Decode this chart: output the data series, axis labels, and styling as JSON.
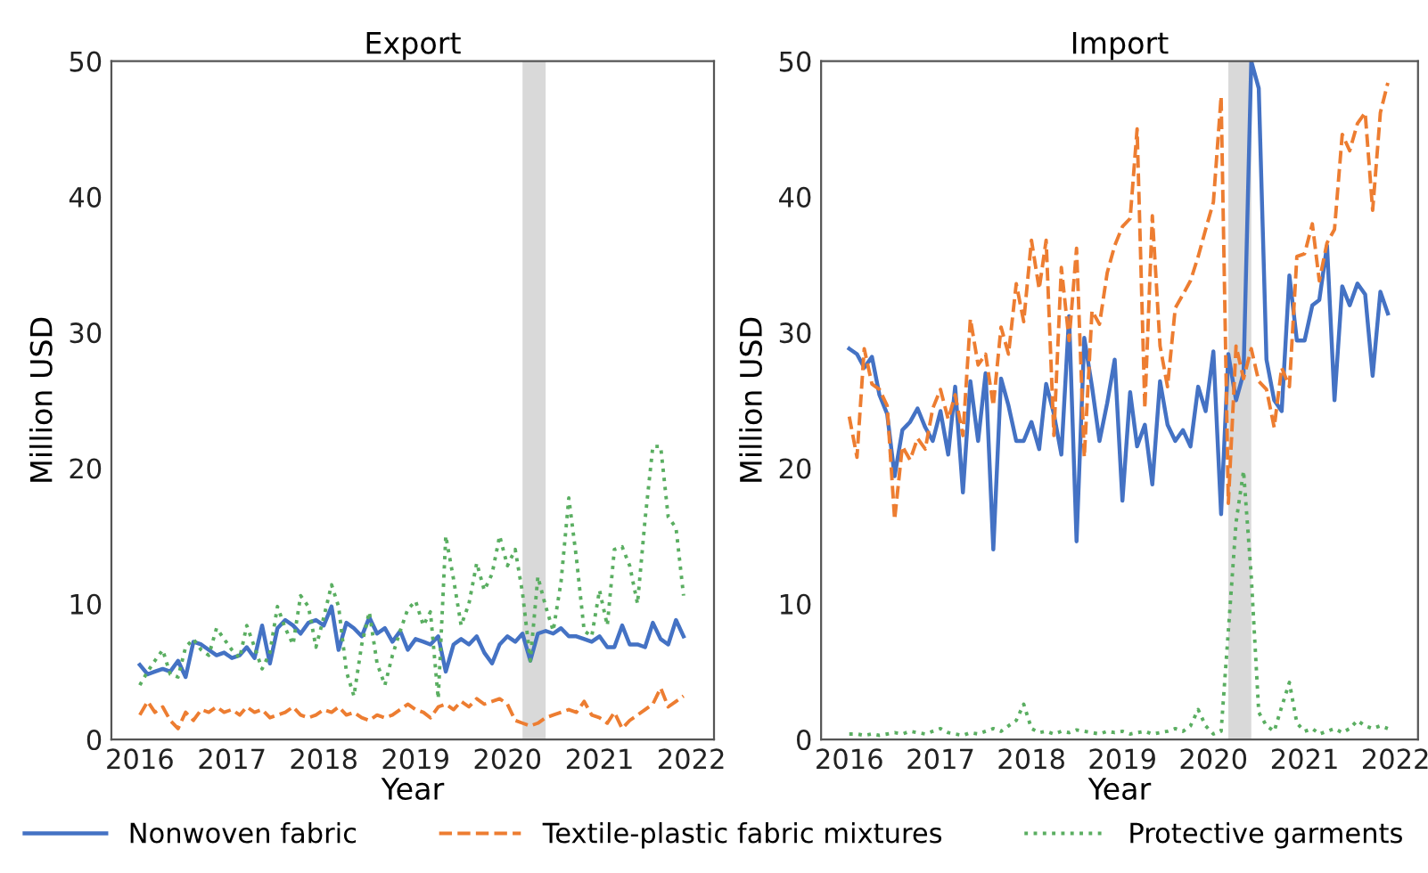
{
  "chart_data": [
    {
      "type": "line",
      "title": "Export",
      "xlabel": "Year",
      "ylabel": "Million USD",
      "x": [
        "2016-01",
        "2016-02",
        "2016-03",
        "2016-04",
        "2016-05",
        "2016-06",
        "2016-07",
        "2016-08",
        "2016-09",
        "2016-10",
        "2016-11",
        "2016-12",
        "2017-01",
        "2017-02",
        "2017-03",
        "2017-04",
        "2017-05",
        "2017-06",
        "2017-07",
        "2017-08",
        "2017-09",
        "2017-10",
        "2017-11",
        "2017-12",
        "2018-01",
        "2018-02",
        "2018-03",
        "2018-04",
        "2018-05",
        "2018-06",
        "2018-07",
        "2018-08",
        "2018-09",
        "2018-10",
        "2018-11",
        "2018-12",
        "2019-01",
        "2019-02",
        "2019-03",
        "2019-04",
        "2019-05",
        "2019-06",
        "2019-07",
        "2019-08",
        "2019-09",
        "2019-10",
        "2019-11",
        "2019-12",
        "2020-01",
        "2020-02",
        "2020-03",
        "2020-04",
        "2020-05",
        "2020-06",
        "2020-07",
        "2020-08",
        "2020-09",
        "2020-10",
        "2020-11",
        "2020-12",
        "2021-01",
        "2021-02",
        "2021-03",
        "2021-04",
        "2021-05",
        "2021-06",
        "2021-07",
        "2021-08",
        "2021-09",
        "2021-10",
        "2021-11",
        "2021-12"
      ],
      "xlim": [
        "2015-09-10",
        "2022-04-01"
      ],
      "xticks": [
        {
          "value": "2016-01-01",
          "label": "2016"
        },
        {
          "value": "2017-01-01",
          "label": "2017"
        },
        {
          "value": "2018-01-01",
          "label": "2018"
        },
        {
          "value": "2019-01-01",
          "label": "2019"
        },
        {
          "value": "2020-01-01",
          "label": "2020"
        },
        {
          "value": "2021-01-01",
          "label": "2021"
        },
        {
          "value": "2022-01-01",
          "label": "2022"
        }
      ],
      "ylim": [
        0,
        50
      ],
      "yticks": [
        0,
        10,
        20,
        30,
        40,
        50
      ],
      "bands": [
        {
          "axis": "x",
          "from": "2020-03-01",
          "to": "2020-06-01",
          "color": "#d0d0d0"
        }
      ],
      "legend": "bottom",
      "series": [
        {
          "name": "Nonwoven fabric",
          "color": "#4472c4",
          "line_style": "solid",
          "values": [
            5.5,
            4.8,
            5.0,
            5.2,
            5.0,
            5.8,
            4.6,
            7.2,
            7.0,
            6.6,
            6.2,
            6.4,
            6.0,
            6.2,
            6.8,
            6.0,
            8.4,
            5.6,
            8.2,
            8.8,
            8.4,
            7.8,
            8.6,
            8.8,
            8.4,
            9.8,
            6.6,
            8.6,
            8.2,
            7.6,
            9.0,
            7.8,
            8.2,
            7.2,
            8.0,
            6.6,
            7.4,
            7.2,
            7.0,
            7.6,
            5.0,
            7.0,
            7.4,
            7.0,
            7.6,
            6.4,
            5.6,
            7.0,
            7.6,
            7.2,
            7.8,
            5.8,
            7.8,
            8.0,
            7.8,
            8.2,
            7.6,
            7.6,
            7.4,
            7.2,
            7.6,
            6.8,
            6.8,
            8.4,
            7.0,
            7.0,
            6.8,
            8.6,
            7.4,
            7.0,
            8.8,
            7.6
          ]
        },
        {
          "name": "Textile-plastic fabric mixtures",
          "color": "#ed7d31",
          "line_style": "dashed",
          "values": [
            1.8,
            2.8,
            2.0,
            2.4,
            1.4,
            0.8,
            2.0,
            1.4,
            2.2,
            2.0,
            2.4,
            2.0,
            2.2,
            1.8,
            2.4,
            2.0,
            2.2,
            1.6,
            1.8,
            2.0,
            2.4,
            1.8,
            1.6,
            1.8,
            2.2,
            2.0,
            2.4,
            1.8,
            2.0,
            1.6,
            1.4,
            1.8,
            1.6,
            1.8,
            2.2,
            2.6,
            2.2,
            2.0,
            1.6,
            2.4,
            2.6,
            2.2,
            2.8,
            2.4,
            3.0,
            2.6,
            2.8,
            3.0,
            2.6,
            1.4,
            1.2,
            1.0,
            1.2,
            1.6,
            1.8,
            2.0,
            2.2,
            2.0,
            2.8,
            1.8,
            1.6,
            1.2,
            2.0,
            0.8,
            1.4,
            1.8,
            2.2,
            2.6,
            3.8,
            2.4,
            2.8,
            3.2
          ]
        },
        {
          "name": "Protective garments",
          "color": "#5aae61",
          "line_style": "dotted",
          "values": [
            4.0,
            5.0,
            5.8,
            6.6,
            4.8,
            4.6,
            6.8,
            7.4,
            6.6,
            6.2,
            8.2,
            7.4,
            6.6,
            6.0,
            8.4,
            6.8,
            5.2,
            6.4,
            9.8,
            8.2,
            7.0,
            10.6,
            9.8,
            6.8,
            9.0,
            11.4,
            9.8,
            5.0,
            3.2,
            7.0,
            9.4,
            5.6,
            4.0,
            6.2,
            8.0,
            9.6,
            10.2,
            8.4,
            9.4,
            3.0,
            15.0,
            11.8,
            8.4,
            10.0,
            13.0,
            11.0,
            12.2,
            15.0,
            12.8,
            14.0,
            10.8,
            5.8,
            12.0,
            9.8,
            8.0,
            11.6,
            17.8,
            13.4,
            8.0,
            7.6,
            11.0,
            8.4,
            14.0,
            14.2,
            12.8,
            10.0,
            16.2,
            21.6,
            21.6,
            16.4,
            15.6,
            10.6
          ]
        }
      ]
    },
    {
      "type": "line",
      "title": "Import",
      "xlabel": "Year",
      "ylabel": "Million USD",
      "x": [
        "2016-01",
        "2016-02",
        "2016-03",
        "2016-04",
        "2016-05",
        "2016-06",
        "2016-07",
        "2016-08",
        "2016-09",
        "2016-10",
        "2016-11",
        "2016-12",
        "2017-01",
        "2017-02",
        "2017-03",
        "2017-04",
        "2017-05",
        "2017-06",
        "2017-07",
        "2017-08",
        "2017-09",
        "2017-10",
        "2017-11",
        "2017-12",
        "2018-01",
        "2018-02",
        "2018-03",
        "2018-04",
        "2018-05",
        "2018-06",
        "2018-07",
        "2018-08",
        "2018-09",
        "2018-10",
        "2018-11",
        "2018-12",
        "2019-01",
        "2019-02",
        "2019-03",
        "2019-04",
        "2019-05",
        "2019-06",
        "2019-07",
        "2019-08",
        "2019-09",
        "2019-10",
        "2019-11",
        "2019-12",
        "2020-01",
        "2020-02",
        "2020-03",
        "2020-04",
        "2020-05",
        "2020-06",
        "2020-07",
        "2020-08",
        "2020-09",
        "2020-10",
        "2020-11",
        "2020-12",
        "2021-01",
        "2021-02",
        "2021-03",
        "2021-04",
        "2021-05",
        "2021-06",
        "2021-07",
        "2021-08",
        "2021-09",
        "2021-10",
        "2021-11",
        "2021-12"
      ],
      "xlim": [
        "2015-09-10",
        "2022-04-01"
      ],
      "xticks": [
        {
          "value": "2016-01-01",
          "label": "2016"
        },
        {
          "value": "2017-01-01",
          "label": "2017"
        },
        {
          "value": "2018-01-01",
          "label": "2018"
        },
        {
          "value": "2019-01-01",
          "label": "2019"
        },
        {
          "value": "2020-01-01",
          "label": "2020"
        },
        {
          "value": "2021-01-01",
          "label": "2021"
        },
        {
          "value": "2022-01-01",
          "label": "2022"
        }
      ],
      "ylim": [
        0,
        50
      ],
      "yticks": [
        0,
        10,
        20,
        30,
        40,
        50
      ],
      "bands": [
        {
          "axis": "x",
          "from": "2020-03-01",
          "to": "2020-06-01",
          "color": "#d0d0d0"
        }
      ],
      "legend": "bottom",
      "series": [
        {
          "name": "Nonwoven fabric",
          "color": "#4472c4",
          "line_style": "solid",
          "values": [
            28.8,
            28.4,
            27.4,
            28.2,
            25.4,
            24.0,
            19.4,
            22.8,
            23.4,
            24.4,
            23.0,
            22.0,
            24.2,
            21.0,
            26.0,
            18.2,
            26.4,
            22.0,
            27.0,
            14.0,
            26.6,
            24.6,
            22.0,
            22.0,
            23.4,
            21.4,
            26.2,
            24.0,
            21.0,
            31.2,
            14.6,
            29.6,
            26.0,
            22.0,
            24.8,
            28.0,
            17.6,
            25.6,
            21.6,
            23.2,
            18.8,
            26.4,
            23.2,
            22.0,
            22.8,
            21.6,
            26.0,
            24.2,
            28.6,
            16.6,
            28.4,
            25.0,
            27.0,
            50.0,
            48.0,
            28.0,
            25.0,
            24.2,
            34.2,
            29.4,
            29.4,
            32.0,
            32.4,
            36.4,
            25.0,
            33.4,
            32.0,
            33.6,
            32.8,
            26.8,
            33.0,
            31.4
          ]
        },
        {
          "name": "Textile-plastic fabric mixtures",
          "color": "#ed7d31",
          "line_style": "dashed",
          "values": [
            23.8,
            20.8,
            28.8,
            26.2,
            25.8,
            24.6,
            16.2,
            21.6,
            20.6,
            22.2,
            21.4,
            24.4,
            25.8,
            23.6,
            25.4,
            22.4,
            31.0,
            27.6,
            28.4,
            24.6,
            30.4,
            28.4,
            33.6,
            30.8,
            36.8,
            33.2,
            36.8,
            22.4,
            34.8,
            29.4,
            36.2,
            20.8,
            31.6,
            30.6,
            34.4,
            36.4,
            37.8,
            38.4,
            45.0,
            24.4,
            38.6,
            29.0,
            26.0,
            31.8,
            32.8,
            33.8,
            35.6,
            37.6,
            39.6,
            47.4,
            17.4,
            29.0,
            26.6,
            28.8,
            26.4,
            25.8,
            23.0,
            27.4,
            26.0,
            35.6,
            35.8,
            38.0,
            33.8,
            36.6,
            37.6,
            44.6,
            43.4,
            45.4,
            46.2,
            39.0,
            46.2,
            48.4
          ]
        },
        {
          "name": "Protective garments",
          "color": "#5aae61",
          "line_style": "dotted",
          "values": [
            0.4,
            0.4,
            0.3,
            0.4,
            0.3,
            0.4,
            0.5,
            0.4,
            0.6,
            0.5,
            0.4,
            0.6,
            0.8,
            0.5,
            0.4,
            0.3,
            0.5,
            0.4,
            0.6,
            0.8,
            0.6,
            1.0,
            1.4,
            2.6,
            0.8,
            0.5,
            0.6,
            0.4,
            0.6,
            0.5,
            0.7,
            0.6,
            0.5,
            0.4,
            0.6,
            0.5,
            0.6,
            0.4,
            0.5,
            0.6,
            0.4,
            0.5,
            0.6,
            0.8,
            0.6,
            1.0,
            2.2,
            1.0,
            0.4,
            0.6,
            8.0,
            16.0,
            19.8,
            12.0,
            2.0,
            1.0,
            0.6,
            2.4,
            4.2,
            1.2,
            0.6,
            0.8,
            0.4,
            0.6,
            0.8,
            0.5,
            0.8,
            1.4,
            1.0,
            0.8,
            1.0,
            0.8
          ]
        }
      ]
    }
  ]
}
